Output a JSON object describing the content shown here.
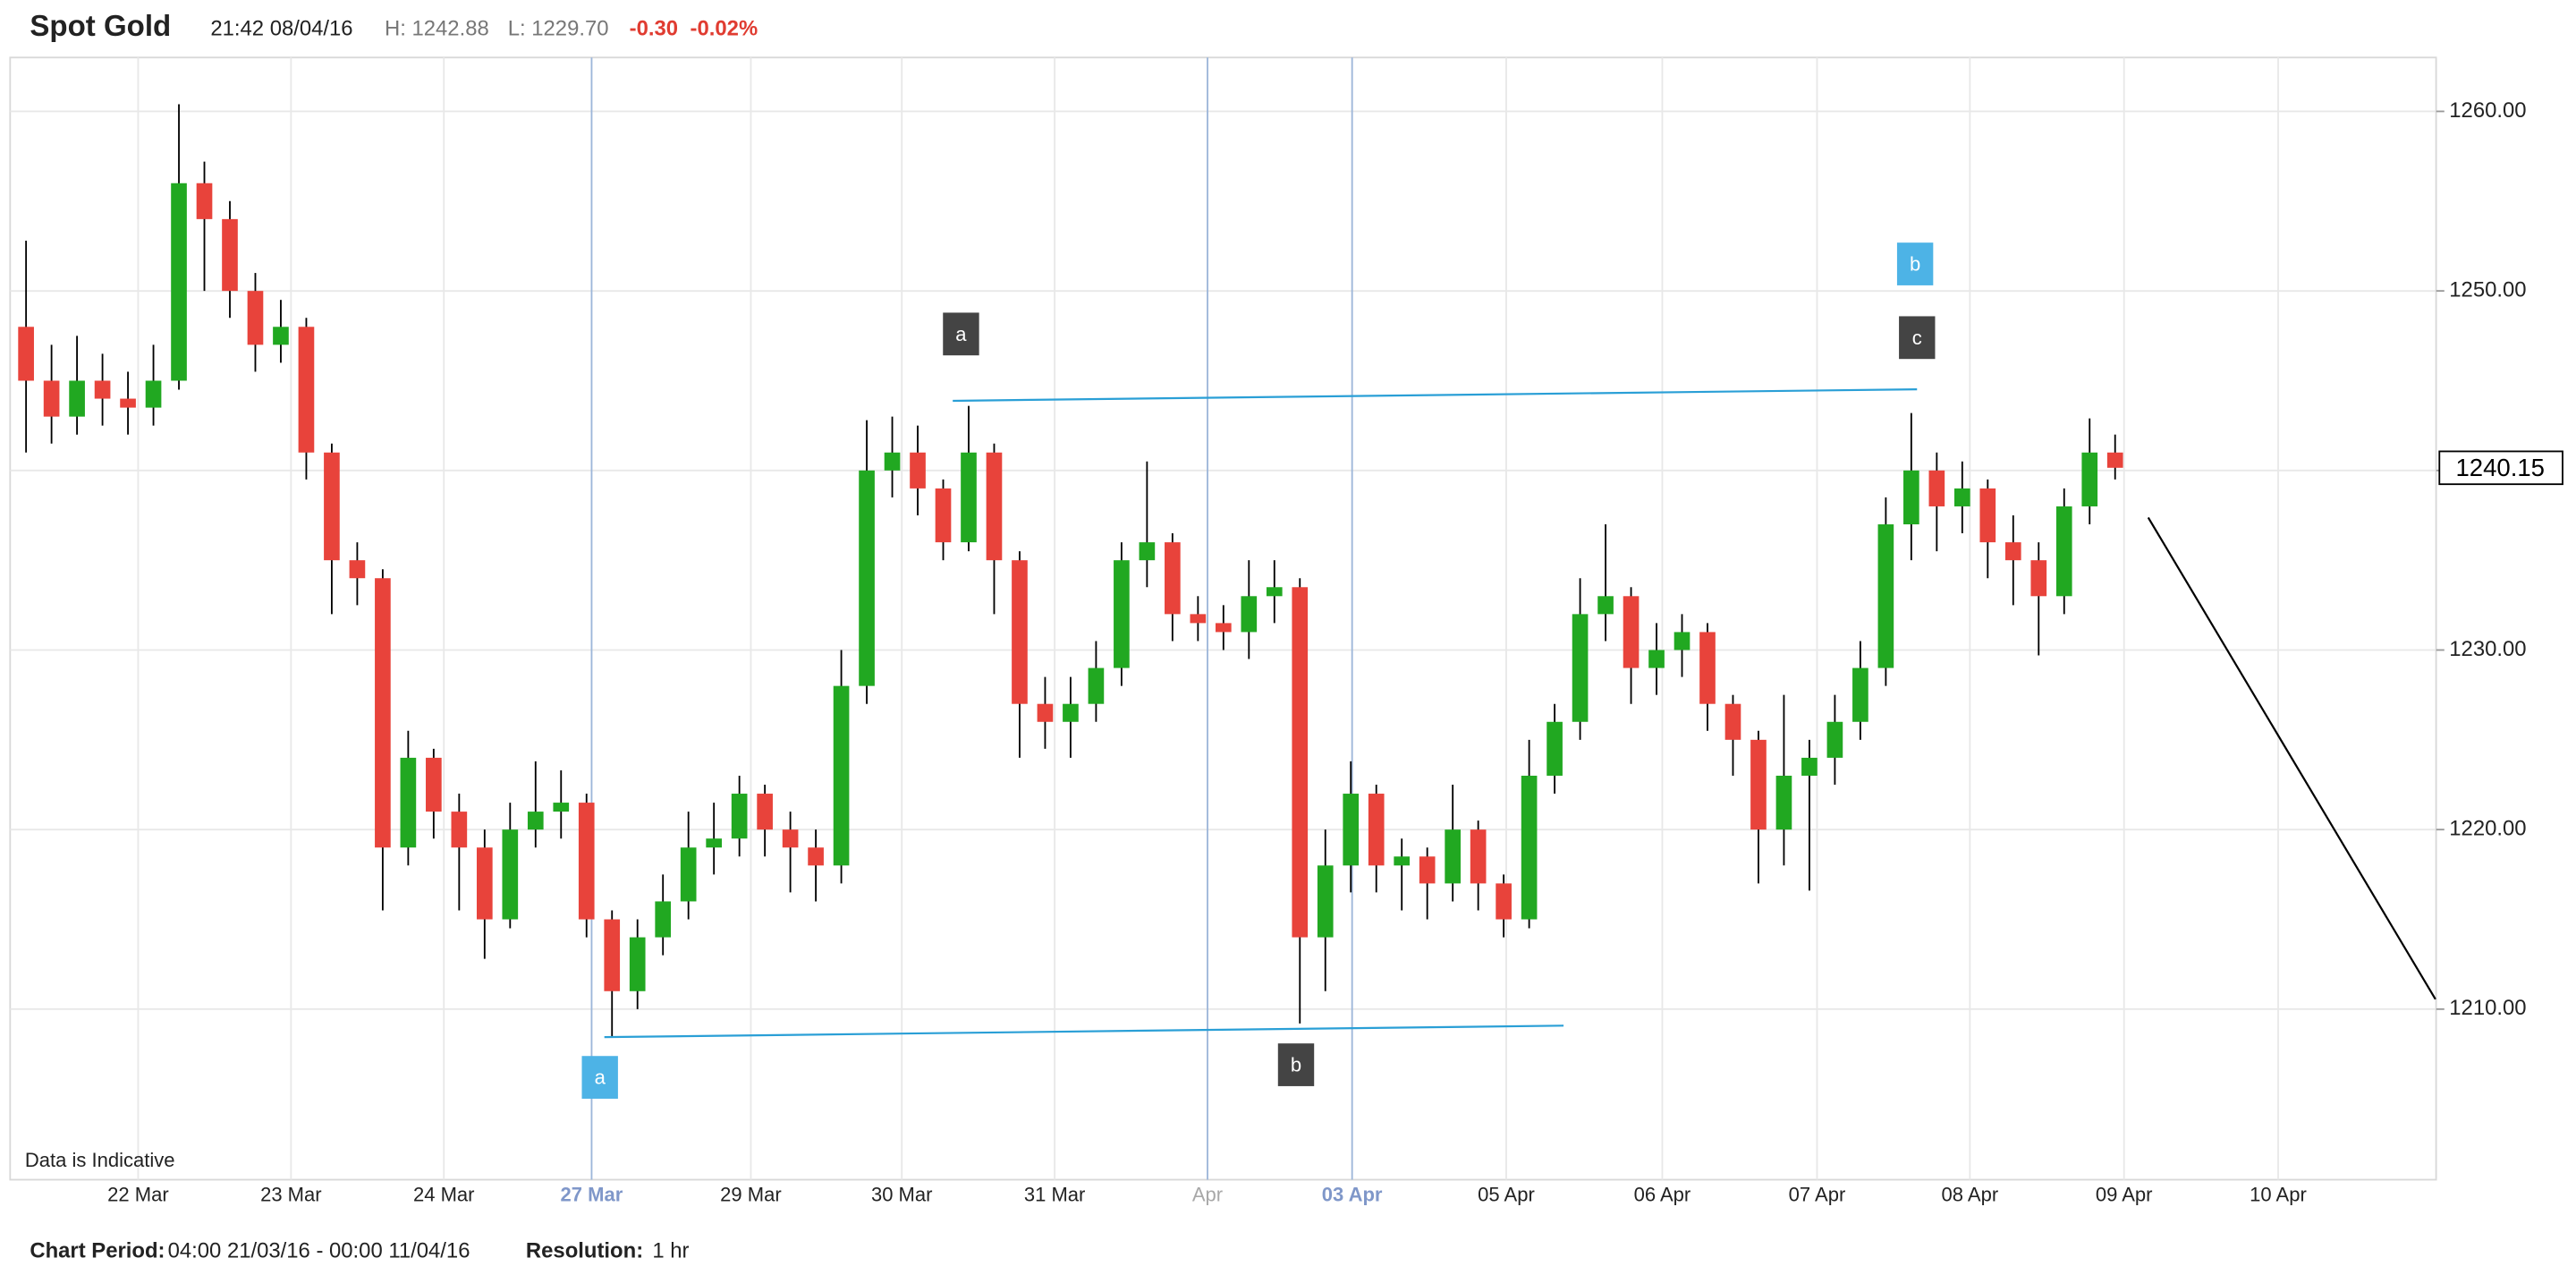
{
  "header": {
    "title": "Spot Gold",
    "time": "21:42 08/04/16",
    "high": "H: 1242.88",
    "low": "L: 1229.70",
    "change": "-0.30",
    "change_pct": "-0.02%"
  },
  "footer": {
    "period_label": "Chart Period:",
    "period": "04:00 21/03/16 - 00:00 11/04/16",
    "resolution_label": "Resolution:",
    "resolution": "1 hr"
  },
  "chart_data": {
    "type": "candlestick",
    "note": "Data is Indicative",
    "up_color": "#21a821",
    "down_color": "#e8433b",
    "wick_color": "#000000",
    "x": [
      2,
      6,
      10,
      14,
      18,
      22,
      26,
      30,
      34,
      38,
      42,
      46,
      50,
      54,
      58,
      62,
      66,
      70,
      74,
      78,
      82,
      86,
      90,
      94,
      98,
      102,
      106,
      110,
      114,
      118,
      122,
      126,
      130,
      134,
      138,
      142,
      146,
      150,
      154,
      158,
      162,
      166,
      170,
      174,
      178,
      182,
      186,
      190,
      194,
      198,
      202,
      206,
      210,
      214,
      218,
      222,
      226,
      230,
      234,
      238,
      242,
      246,
      250,
      254,
      258,
      262,
      266,
      270,
      274,
      278,
      282,
      286,
      290,
      294,
      298,
      302,
      306,
      310,
      314,
      318,
      322,
      326,
      330
    ],
    "open": [
      1248,
      1245,
      1243,
      1245,
      1244,
      1243.5,
      1245,
      1256,
      1254,
      1250,
      1247,
      1248,
      1241,
      1235,
      1234,
      1219,
      1224,
      1221,
      1219,
      1215,
      1220,
      1221,
      1221.5,
      1215,
      1211,
      1214,
      1216,
      1219,
      1219.5,
      1222,
      1220,
      1219,
      1218,
      1228,
      1240,
      1241,
      1239,
      1236,
      1241,
      1235,
      1227,
      1226,
      1227,
      1229,
      1235,
      1236,
      1232,
      1231.5,
      1231,
      1233,
      1233.5,
      1214,
      1218,
      1222,
      1218,
      1218.5,
      1217,
      1220,
      1217,
      1215,
      1223,
      1226,
      1232,
      1233,
      1229,
      1230,
      1231,
      1227,
      1225,
      1220,
      1223,
      1224,
      1226,
      1229,
      1237,
      1240,
      1238,
      1239,
      1236,
      1235,
      1233,
      1238,
      1241
    ],
    "high": [
      1252.8,
      1247,
      1247.5,
      1246.5,
      1245.5,
      1247,
      1260.4,
      1257.2,
      1255,
      1251,
      1249.5,
      1248.5,
      1241.5,
      1236,
      1234.5,
      1225.5,
      1224.5,
      1222,
      1220,
      1221.5,
      1223.8,
      1223.3,
      1222,
      1215.5,
      1215,
      1217.5,
      1221,
      1221.5,
      1223,
      1222.5,
      1221,
      1220,
      1230,
      1242.8,
      1243,
      1242.5,
      1239.5,
      1243.6,
      1241.5,
      1235.5,
      1228.5,
      1228.5,
      1230.5,
      1236,
      1240.5,
      1236.5,
      1233,
      1232.5,
      1235,
      1235,
      1234,
      1220,
      1223.8,
      1222.5,
      1219.5,
      1219,
      1222.5,
      1220.5,
      1217.5,
      1225,
      1227,
      1234,
      1237,
      1233.5,
      1231.5,
      1232,
      1231.5,
      1227.5,
      1225.5,
      1227.5,
      1225,
      1227.5,
      1230.5,
      1238.5,
      1243.2,
      1241,
      1240.5,
      1239.5,
      1237.5,
      1236,
      1239,
      1242.9,
      1242
    ],
    "low": [
      1241,
      1241.5,
      1242,
      1242.5,
      1242,
      1242.5,
      1244.5,
      1250,
      1248.5,
      1245.5,
      1246,
      1239.5,
      1232,
      1232.5,
      1215.5,
      1218,
      1219.5,
      1215.5,
      1212.8,
      1214.5,
      1219,
      1219.5,
      1214,
      1208.5,
      1210,
      1213,
      1215,
      1217.5,
      1218.5,
      1218.5,
      1216.5,
      1216,
      1217,
      1227,
      1238.5,
      1237.5,
      1235,
      1235.5,
      1232,
      1224,
      1224.5,
      1224,
      1226,
      1228,
      1233.5,
      1230.5,
      1230.5,
      1230,
      1229.5,
      1231.5,
      1209.2,
      1211,
      1216.5,
      1216.5,
      1215.5,
      1215,
      1216,
      1215.5,
      1214,
      1214.5,
      1222,
      1225,
      1230.5,
      1227,
      1227.5,
      1228.5,
      1225.5,
      1223,
      1217,
      1218,
      1216.6,
      1222.5,
      1225,
      1228,
      1235,
      1235.5,
      1236.5,
      1234,
      1232.5,
      1229.7,
      1232,
      1237,
      1239.5
    ],
    "close": [
      1245,
      1243,
      1245,
      1244,
      1243.5,
      1245,
      1256,
      1254,
      1250,
      1247,
      1248,
      1241,
      1235,
      1234,
      1219,
      1224,
      1221,
      1219,
      1215,
      1220,
      1221,
      1221.5,
      1215,
      1211,
      1214,
      1216,
      1219,
      1219.5,
      1222,
      1220,
      1219,
      1218,
      1228,
      1240,
      1241,
      1239,
      1236,
      1241,
      1235,
      1227,
      1226,
      1227,
      1229,
      1235,
      1236,
      1232,
      1231.5,
      1231,
      1233,
      1233.5,
      1214,
      1218,
      1222,
      1218,
      1218.5,
      1217,
      1220,
      1217,
      1215,
      1223,
      1226,
      1232,
      1233,
      1229,
      1230,
      1231,
      1227,
      1225,
      1220,
      1223,
      1224,
      1226,
      1229,
      1237,
      1240,
      1238,
      1239,
      1236,
      1235,
      1233,
      1238,
      1241,
      1240.15
    ],
    "last_value": 1240.15,
    "xlim": [
      -0.5,
      380.4
    ],
    "xticks": [
      {
        "value": 19.6,
        "label": "22 Mar"
      },
      {
        "value": 43.6,
        "label": "23 Mar"
      },
      {
        "value": 67.6,
        "label": "24 Mar"
      },
      {
        "value": 90.8,
        "label": "27 Mar",
        "color": "#7f97c9"
      },
      {
        "value": 115.8,
        "label": "29 Mar"
      },
      {
        "value": 139.5,
        "label": "30 Mar"
      },
      {
        "value": 163.5,
        "label": "31 Mar"
      },
      {
        "value": 187.5,
        "label": "Apr",
        "color": "#a8a8a8"
      },
      {
        "value": 210.2,
        "label": "03 Apr",
        "color": "#7f97c9"
      },
      {
        "value": 234.4,
        "label": "05 Apr"
      },
      {
        "value": 258.9,
        "label": "06 Apr"
      },
      {
        "value": 283.2,
        "label": "07 Apr"
      },
      {
        "value": 307.2,
        "label": "08 Apr"
      },
      {
        "value": 331.4,
        "label": "09 Apr"
      },
      {
        "value": 355.6,
        "label": "10 Apr"
      }
    ],
    "ylim": [
      1200.5,
      1263
    ],
    "yticks": [
      {
        "value": 1210,
        "label": "1210.00"
      },
      {
        "value": 1220,
        "label": "1220.00"
      },
      {
        "value": 1230,
        "label": "1230.00"
      },
      {
        "value": 1240,
        "label": "1240.00"
      },
      {
        "value": 1250,
        "label": "1250.00"
      },
      {
        "value": 1260,
        "label": "1260.00"
      }
    ],
    "grid": true,
    "trendlines": [
      {
        "color": "#2a9fd6",
        "x": [
          147.5,
          298.9
        ],
        "y": [
          1243.88,
          1244.52
        ]
      },
      {
        "color": "#2a9fd6",
        "x": [
          92.8,
          243.4
        ],
        "y": [
          1208.44,
          1209.08
        ]
      },
      {
        "color": "#000000",
        "x": [
          335.2,
          380.3
        ],
        "y": [
          1237.38,
          1210.55
        ]
      }
    ],
    "annotations": [
      {
        "text": "a",
        "color": "#4db3e6",
        "x": 92.1,
        "y": 1206.2
      },
      {
        "text": "a",
        "color": "#444444",
        "x": 148.8,
        "y": 1247.6
      },
      {
        "text": "b",
        "color": "#444444",
        "x": 201.4,
        "y": 1206.9
      },
      {
        "text": "b",
        "color": "#4db3e6",
        "x": 298.6,
        "y": 1251.5
      },
      {
        "text": "c",
        "color": "#444444",
        "x": 298.9,
        "y": 1247.4
      }
    ]
  }
}
